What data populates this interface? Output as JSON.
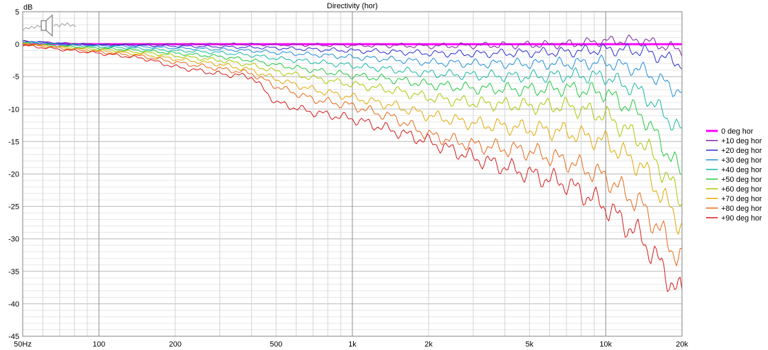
{
  "chart_data": {
    "type": "line",
    "title": "Directivity (hor)",
    "ylabel": "dB",
    "xlabel": "",
    "xscale": "log",
    "xlim": [
      50,
      20000
    ],
    "ylim": [
      -45,
      5
    ],
    "grid": true,
    "legend_position": "right",
    "x_ticks": [
      {
        "value": 50,
        "label": "50Hz"
      },
      {
        "value": 100,
        "label": "100"
      },
      {
        "value": 200,
        "label": "200"
      },
      {
        "value": 500,
        "label": "500"
      },
      {
        "value": 1000,
        "label": "1k"
      },
      {
        "value": 2000,
        "label": "2k"
      },
      {
        "value": 5000,
        "label": "5k"
      },
      {
        "value": 10000,
        "label": "10k"
      },
      {
        "value": 20000,
        "label": "20k"
      }
    ],
    "y_ticks": [
      {
        "value": 5,
        "label": "5"
      },
      {
        "value": 0,
        "label": "0"
      },
      {
        "value": -5,
        "label": "-5"
      },
      {
        "value": -10,
        "label": "-10"
      },
      {
        "value": -15,
        "label": "-15"
      },
      {
        "value": -20,
        "label": "-20"
      },
      {
        "value": -25,
        "label": "-25"
      },
      {
        "value": -30,
        "label": "-30"
      },
      {
        "value": -35,
        "label": "-35"
      },
      {
        "value": -40,
        "label": "-40"
      },
      {
        "value": -45,
        "label": "-45"
      }
    ],
    "x": [
      50,
      70,
      100,
      150,
      200,
      300,
      400,
      500,
      700,
      1000,
      1500,
      2000,
      3000,
      5000,
      7000,
      10000,
      14000,
      20000
    ],
    "series": [
      {
        "name": "0 deg hor",
        "color": "#ff00ff",
        "values": [
          0,
          0,
          0,
          0,
          0,
          0,
          0,
          0,
          0,
          0,
          0,
          0,
          0,
          0,
          0,
          0,
          0,
          0
        ]
      },
      {
        "name": "+10 deg hor",
        "color": "#7a1fa0",
        "values": [
          0.5,
          0.2,
          0,
          0,
          0,
          0,
          0,
          -0.1,
          -0.1,
          -0.2,
          -0.2,
          -0.3,
          -0.2,
          -0.1,
          0,
          0.5,
          0.6,
          -1.0
        ]
      },
      {
        "name": "+20 deg hor",
        "color": "#2a2ad0",
        "values": [
          0.5,
          0.1,
          -0.1,
          -0.2,
          -0.3,
          -0.4,
          -0.5,
          -0.6,
          -0.8,
          -1.0,
          -1.2,
          -1.4,
          -1.5,
          -1.3,
          -1.2,
          -0.8,
          -1.0,
          -3.0
        ]
      },
      {
        "name": "+30 deg hor",
        "color": "#1e8fd8",
        "values": [
          0.4,
          0.0,
          -0.2,
          -0.4,
          -0.6,
          -0.8,
          -1.0,
          -1.3,
          -1.6,
          -2.0,
          -2.4,
          -2.8,
          -3.0,
          -3.0,
          -3.0,
          -2.8,
          -4.0,
          -7.5
        ]
      },
      {
        "name": "+40 deg hor",
        "color": "#14b8a0",
        "values": [
          0.3,
          -0.1,
          -0.4,
          -0.7,
          -1.0,
          -1.3,
          -1.7,
          -2.2,
          -2.7,
          -3.3,
          -4.0,
          -4.5,
          -4.8,
          -5.0,
          -4.8,
          -5.0,
          -7.5,
          -13.5
        ]
      },
      {
        "name": "+50 deg hor",
        "color": "#20c840",
        "values": [
          0.2,
          -0.3,
          -0.6,
          -1.0,
          -1.4,
          -1.9,
          -2.5,
          -3.2,
          -4.0,
          -4.8,
          -5.5,
          -6.2,
          -6.8,
          -7.0,
          -6.8,
          -7.5,
          -11.0,
          -20.0
        ]
      },
      {
        "name": "+60 deg hor",
        "color": "#a8c800",
        "values": [
          0.1,
          -0.4,
          -0.8,
          -1.3,
          -1.8,
          -2.5,
          -3.2,
          -4.2,
          -5.2,
          -6.2,
          -7.2,
          -8.2,
          -9.0,
          -9.5,
          -9.5,
          -11.0,
          -15.0,
          -24.0
        ]
      },
      {
        "name": "+70 deg hor",
        "color": "#e0a800",
        "values": [
          0.1,
          -0.5,
          -1.0,
          -1.6,
          -2.3,
          -3.1,
          -4.0,
          -5.4,
          -7.0,
          -8.2,
          -9.6,
          -11.0,
          -12.2,
          -13.0,
          -13.5,
          -15.0,
          -19.0,
          -28.0
        ]
      },
      {
        "name": "+80 deg hor",
        "color": "#e86818",
        "values": [
          0.0,
          -0.6,
          -1.2,
          -1.9,
          -2.8,
          -3.8,
          -4.5,
          -6.5,
          -8.5,
          -9.5,
          -11.5,
          -14.0,
          -15.5,
          -16.5,
          -18.0,
          -20.5,
          -25.0,
          -33.5
        ]
      },
      {
        "name": "+90 deg hor",
        "color": "#d81818",
        "values": [
          -0.2,
          -0.8,
          -1.4,
          -2.2,
          -3.5,
          -4.6,
          -5.0,
          -9.0,
          -10.5,
          -11.5,
          -13.5,
          -15.0,
          -17.5,
          -20.0,
          -21.5,
          -25.0,
          -30.0,
          -39.0
        ]
      }
    ]
  }
}
